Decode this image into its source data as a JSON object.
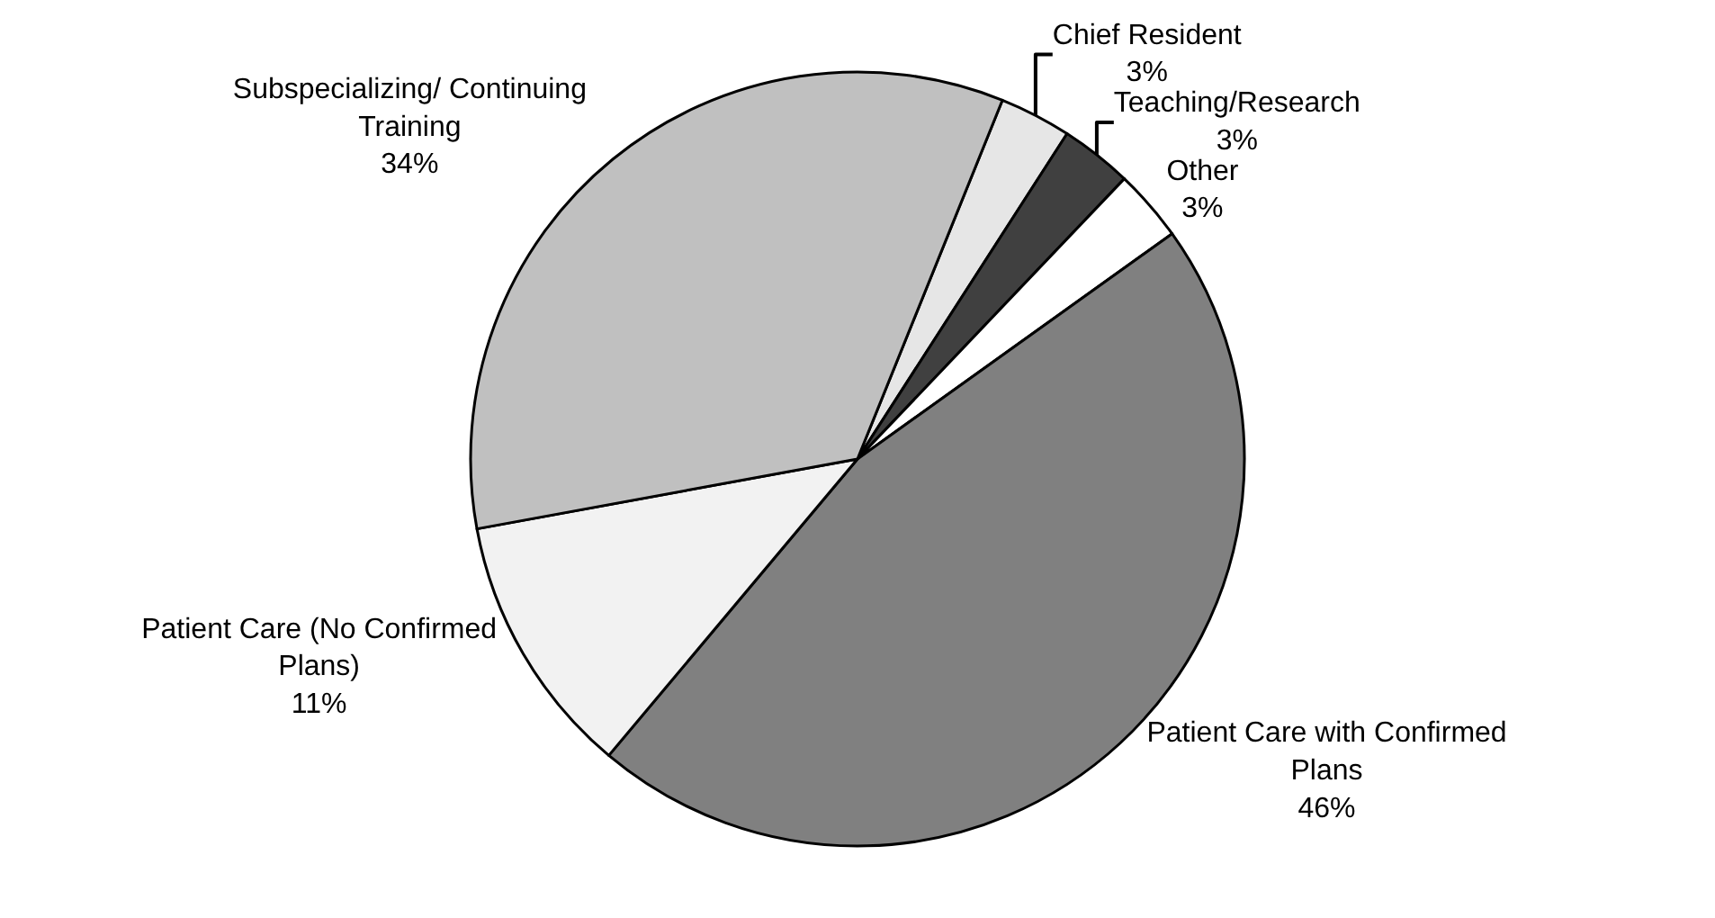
{
  "chart_data": {
    "type": "pie",
    "categories": [
      "Chief Resident",
      "Teaching/Research",
      "Other",
      "Patient Care with Confirmed Plans",
      "Patient Care (No Confirmed Plans)",
      "Subspecializing/ Continuing Training"
    ],
    "values": [
      3,
      3,
      3,
      46,
      11,
      34
    ],
    "value_labels": [
      "3%",
      "3%",
      "3%",
      "46%",
      "11%",
      "34%"
    ],
    "colors": [
      "#e6e6e6",
      "#404040",
      "#ffffff",
      "#808080",
      "#f2f2f2",
      "#c0c0c0"
    ],
    "legend": false
  }
}
